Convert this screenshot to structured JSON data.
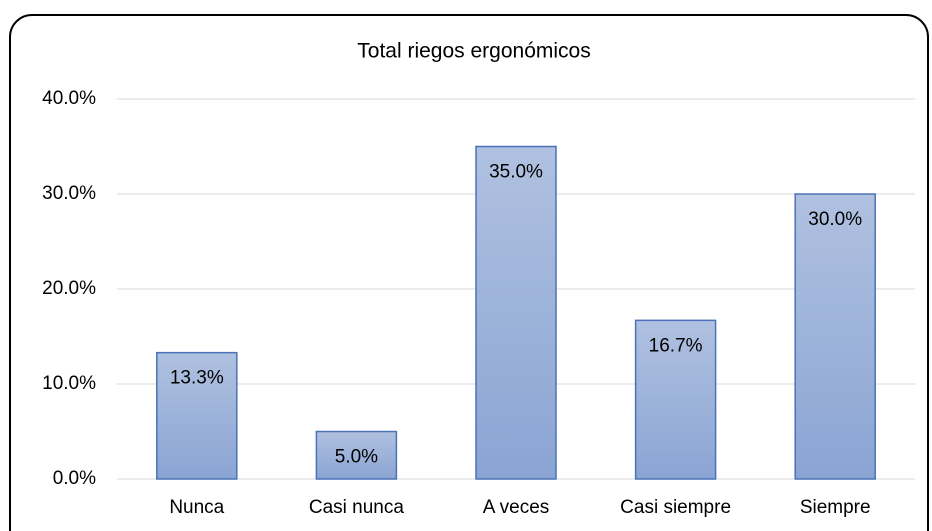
{
  "chart_data": {
    "type": "bar",
    "title": "Total riegos ergonómicos",
    "categories": [
      "Nunca",
      "Casi nunca",
      "A veces",
      "Casi siempre",
      "Siempre"
    ],
    "values": [
      13.3,
      5.0,
      35.0,
      16.7,
      30.0
    ],
    "value_labels": [
      "13.3%",
      "5.0%",
      "35.0%",
      "16.7%",
      "30.0%"
    ],
    "color": "#4a72b8",
    "ylim": [
      0,
      40
    ],
    "yticks": [
      {
        "value": 0,
        "label": "0.0%"
      },
      {
        "value": 10,
        "label": "10.0%"
      },
      {
        "value": 20,
        "label": "20.0%"
      },
      {
        "value": 30,
        "label": "30.0%"
      },
      {
        "value": 40,
        "label": "40.0%"
      }
    ],
    "grid": true
  }
}
